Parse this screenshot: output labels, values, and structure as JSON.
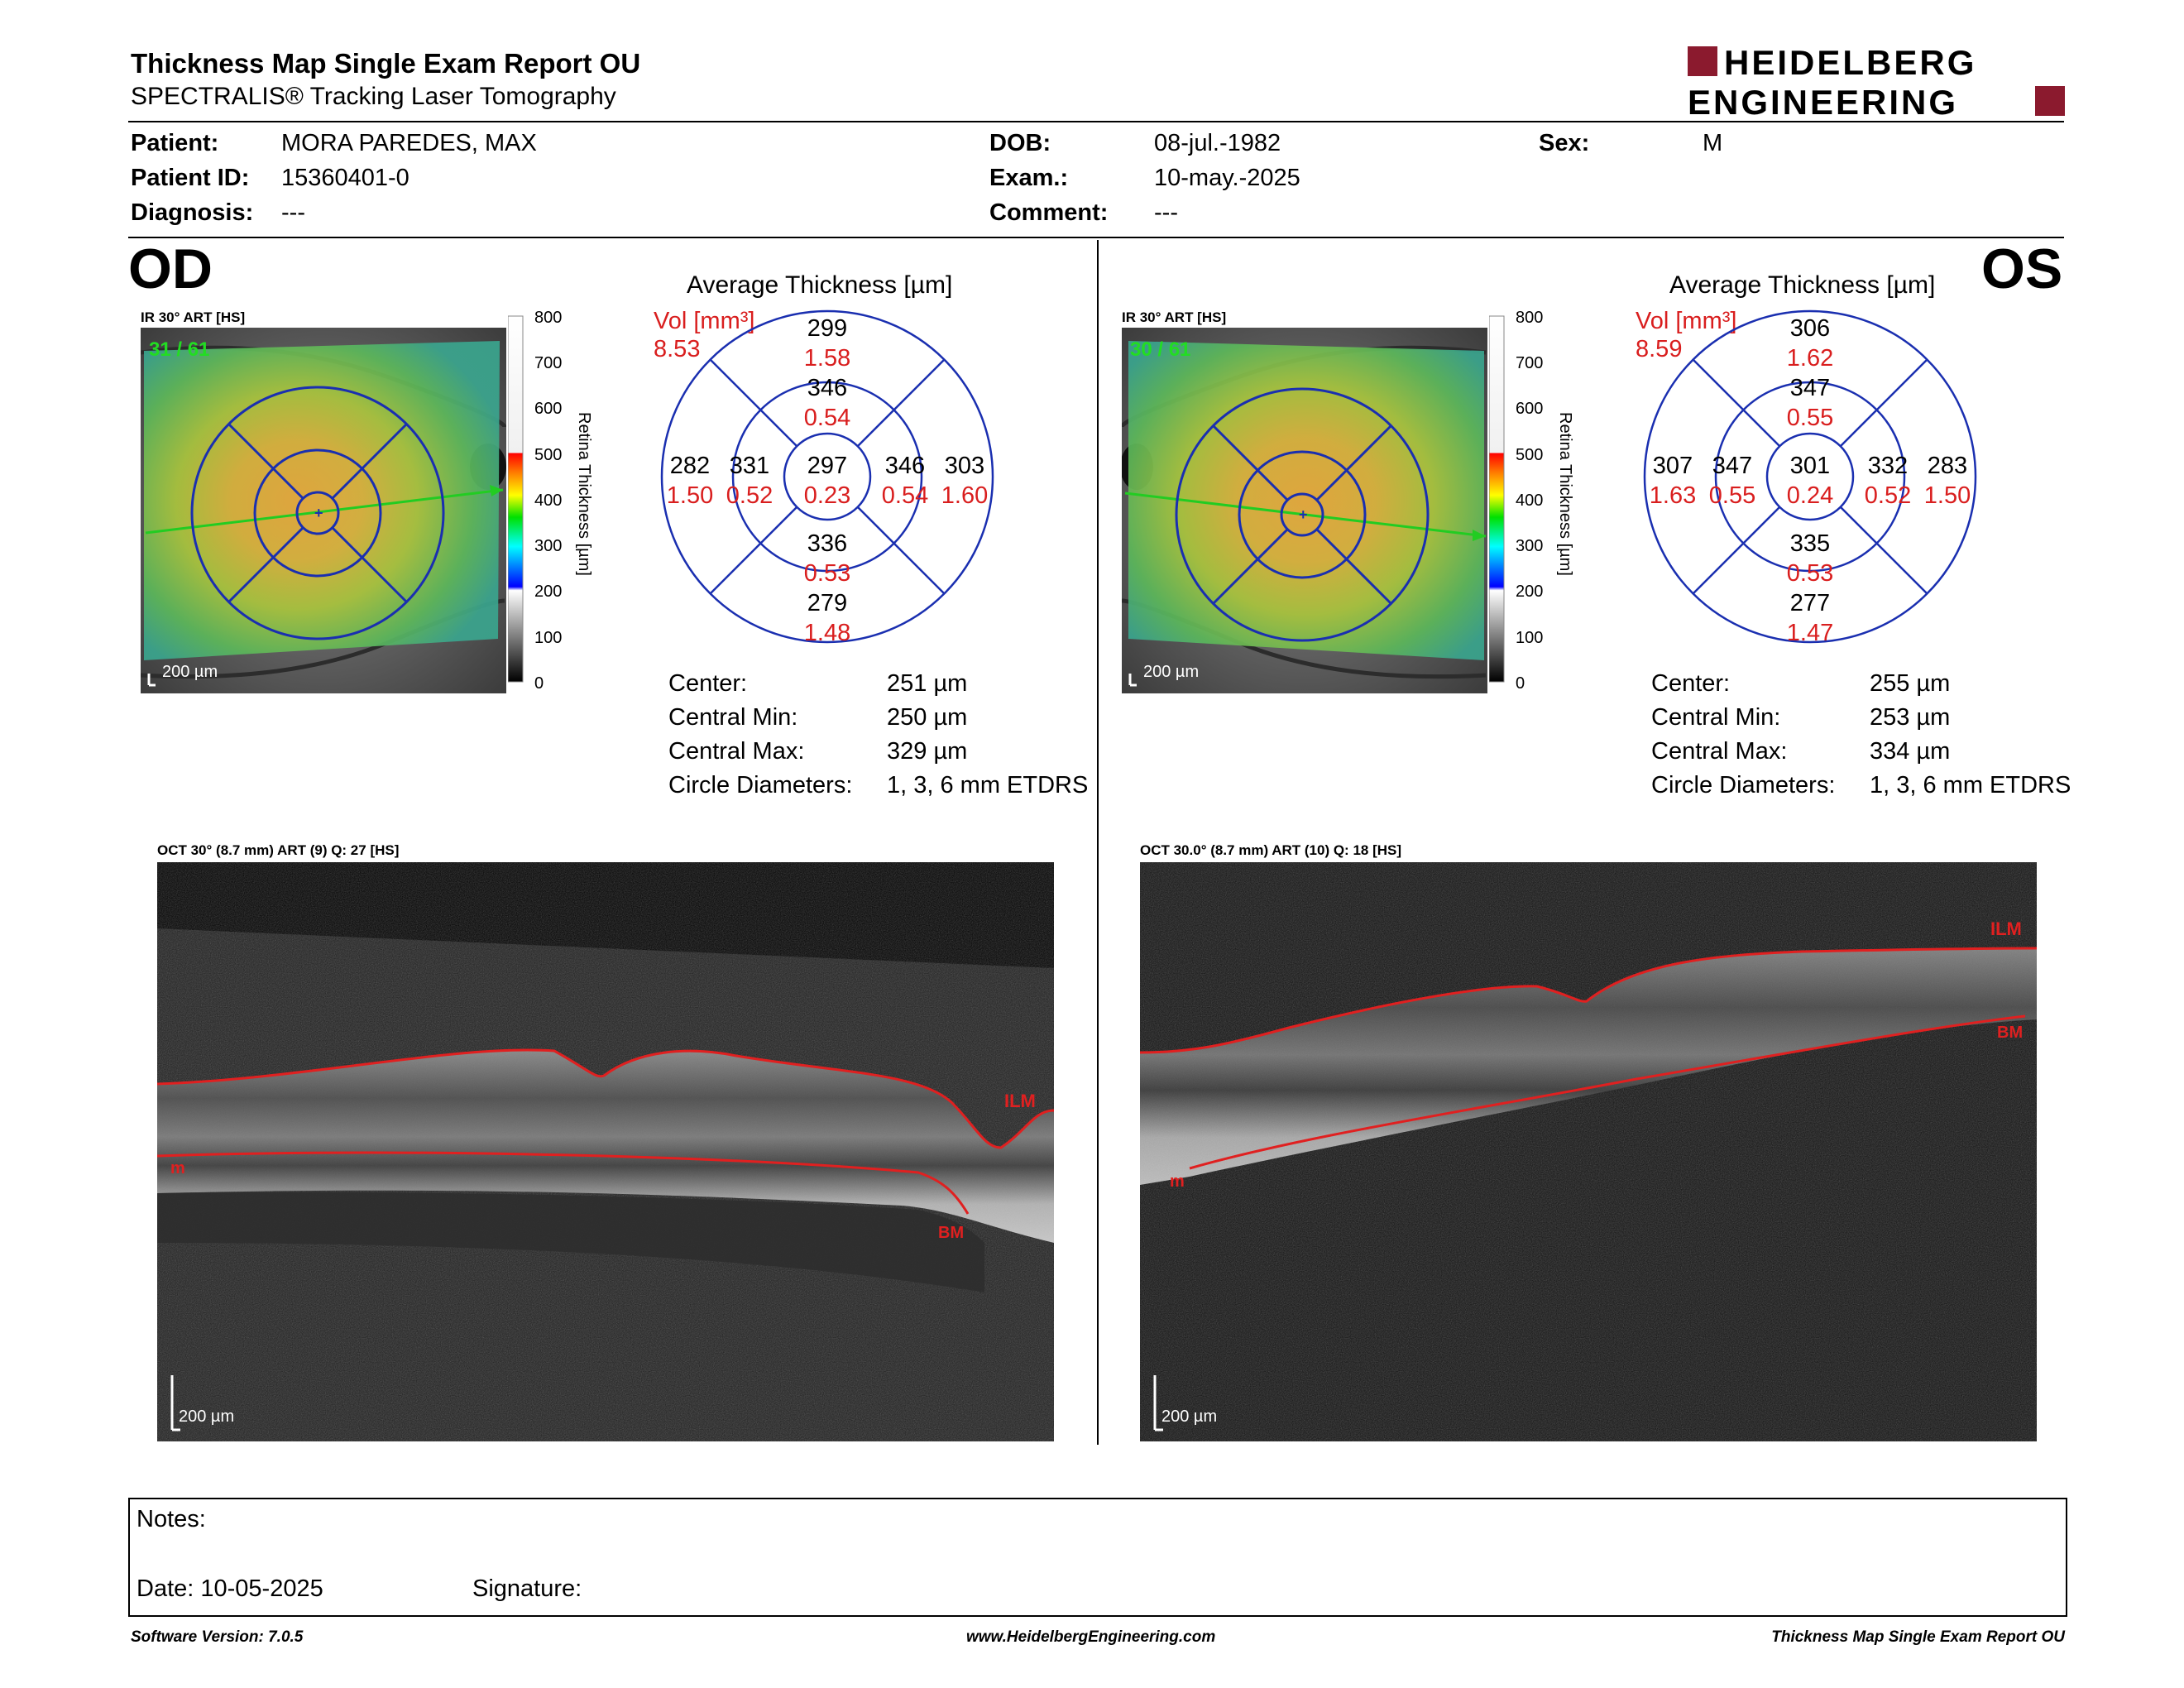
{
  "report": {
    "title": "Thickness Map Single Exam Report OU",
    "subtitle": "SPECTRALIS® Tracking Laser Tomography",
    "brand_line1": "HEIDELBERG",
    "brand_line2": "ENGINEERING",
    "brand_color": "#8b1a2e"
  },
  "patient": {
    "patient_label": "Patient:",
    "patient_value": "MORA PAREDES, MAX",
    "id_label": "Patient ID:",
    "id_value": "15360401-0",
    "diagnosis_label": "Diagnosis:",
    "diagnosis_value": "---",
    "dob_label": "DOB:",
    "dob_value": "08-jul.-1982",
    "exam_label": "Exam.:",
    "exam_value": "10-may.-2025",
    "comment_label": "Comment:",
    "comment_value": "---",
    "sex_label": "Sex:",
    "sex_value": "M"
  },
  "scale": {
    "title": "Retina Thickness [µm]",
    "ticks": [
      "800",
      "700",
      "600",
      "500",
      "400",
      "300",
      "200",
      "100",
      "0"
    ]
  },
  "od": {
    "eye": "OD",
    "ir_caption": "IR 30° ART [HS]",
    "ir_counter": "31 / 61",
    "ir_scalebar": "200 µm",
    "avg_title": "Average Thickness [µm]",
    "vol_label": "Vol [mm³]",
    "vol_value": "8.53",
    "grid": {
      "center": {
        "t": "297",
        "v": "0.23"
      },
      "inner_sup": {
        "t": "346",
        "v": "0.54"
      },
      "inner_inf": {
        "t": "336",
        "v": "0.53"
      },
      "inner_left": {
        "t": "331",
        "v": "0.52"
      },
      "inner_right": {
        "t": "346",
        "v": "0.54"
      },
      "outer_sup": {
        "t": "299",
        "v": "1.58"
      },
      "outer_inf": {
        "t": "279",
        "v": "1.48"
      },
      "outer_left": {
        "t": "282",
        "v": "1.50"
      },
      "outer_right": {
        "t": "303",
        "v": "1.60"
      }
    },
    "stats": {
      "center_label": "Center:",
      "center_value": "251 µm",
      "min_label": "Central Min:",
      "min_value": "250 µm",
      "max_label": "Central Max:",
      "max_value": "329 µm",
      "diam_label": "Circle Diameters:",
      "diam_value": "1, 3, 6 mm ETDRS"
    },
    "oct_caption": "OCT 30° (8.7 mm) ART (9) Q: 27 [HS]",
    "oct_scalebar": "200 µm",
    "ilm_label": "ILM",
    "bm_label": "BM",
    "m_label": "m"
  },
  "os": {
    "eye": "OS",
    "ir_caption": "IR 30° ART [HS]",
    "ir_counter": "30 / 61",
    "ir_scalebar": "200 µm",
    "avg_title": "Average Thickness [µm]",
    "vol_label": "Vol [mm³]",
    "vol_value": "8.59",
    "grid": {
      "center": {
        "t": "301",
        "v": "0.24"
      },
      "inner_sup": {
        "t": "347",
        "v": "0.55"
      },
      "inner_inf": {
        "t": "335",
        "v": "0.53"
      },
      "inner_left": {
        "t": "347",
        "v": "0.55"
      },
      "inner_right": {
        "t": "332",
        "v": "0.52"
      },
      "outer_sup": {
        "t": "306",
        "v": "1.62"
      },
      "outer_inf": {
        "t": "277",
        "v": "1.47"
      },
      "outer_left": {
        "t": "307",
        "v": "1.63"
      },
      "outer_right": {
        "t": "283",
        "v": "1.50"
      }
    },
    "stats": {
      "center_label": "Center:",
      "center_value": "255 µm",
      "min_label": "Central Min:",
      "min_value": "253 µm",
      "max_label": "Central Max:",
      "max_value": "334 µm",
      "diam_label": "Circle Diameters:",
      "diam_value": "1, 3, 6 mm ETDRS"
    },
    "oct_caption": "OCT 30.0° (8.7 mm) ART (10) Q: 18 [HS]",
    "oct_scalebar": "200 µm",
    "ilm_label": "ILM",
    "bm_label": "BM",
    "m_label": "m"
  },
  "notes": {
    "notes_label": "Notes:",
    "date_label": "Date: 10-05-2025",
    "signature_label": "Signature:"
  },
  "footer": {
    "software": "Software Version: 7.0.5",
    "website": "www.HeidelbergEngineering.com",
    "report_name": "Thickness Map Single Exam Report OU"
  }
}
